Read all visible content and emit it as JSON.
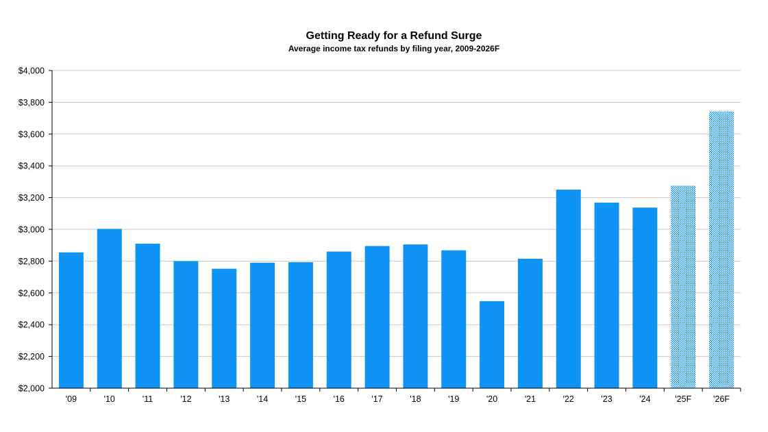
{
  "chart_data": {
    "type": "bar",
    "title": "Getting Ready for a Refund Surge",
    "subtitle": "Average income tax refunds by filing year, 2009-2026F",
    "xlabel": "",
    "ylabel": "",
    "categories": [
      "'09",
      "'10",
      "'11",
      "'12",
      "'13",
      "'14",
      "'15",
      "'16",
      "'17",
      "'18",
      "'19",
      "'20",
      "'21",
      "'22",
      "'23",
      "'24",
      "'25F",
      "'26F"
    ],
    "values": [
      2855,
      3003,
      2910,
      2800,
      2752,
      2790,
      2793,
      2860,
      2895,
      2905,
      2868,
      2548,
      2815,
      3250,
      3168,
      3137,
      3275,
      3743
    ],
    "forecast": [
      false,
      false,
      false,
      false,
      false,
      false,
      false,
      false,
      false,
      false,
      false,
      false,
      false,
      false,
      false,
      false,
      true,
      true
    ],
    "ylim": [
      2000,
      4000
    ],
    "yticks": [
      2000,
      2200,
      2400,
      2600,
      2800,
      3000,
      3200,
      3400,
      3600,
      3800,
      4000
    ],
    "ytick_labels": [
      "$2,000",
      "$2,200",
      "$2,400",
      "$2,600",
      "$2,800",
      "$3,000",
      "$3,200",
      "$3,400",
      "$3,600",
      "$3,800",
      "$4,000"
    ],
    "grid": true,
    "legend": "none",
    "colors": {
      "bar": "#0f94f5",
      "forecast": "#0f94f5",
      "grid": "#c8c8c8",
      "axis": "#000000"
    }
  }
}
